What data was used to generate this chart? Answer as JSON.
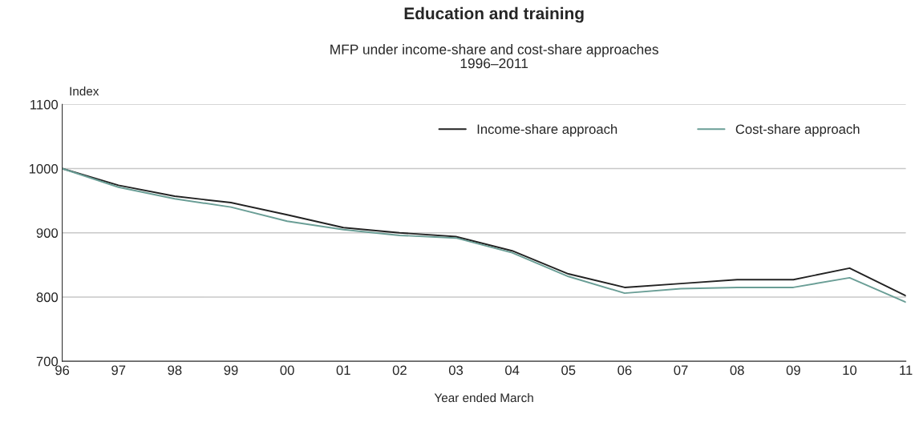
{
  "chart_data": {
    "type": "line",
    "title": "Education and training",
    "subtitle": "MFP under income-share and cost-share approaches\n1996–2011",
    "xlabel": "Year ended March",
    "ylabel": "Index",
    "categories": [
      "96",
      "97",
      "98",
      "99",
      "00",
      "01",
      "02",
      "03",
      "04",
      "05",
      "06",
      "07",
      "08",
      "09",
      "10",
      "11"
    ],
    "series": [
      {
        "name": "Income-share approach",
        "color": "#222222",
        "values": [
          1000,
          974,
          957,
          947,
          928,
          908,
          900,
          894,
          872,
          836,
          815,
          821,
          827,
          827,
          845,
          802
        ]
      },
      {
        "name": "Cost-share approach",
        "color": "#6a9e96",
        "values": [
          1000,
          971,
          953,
          940,
          918,
          905,
          896,
          892,
          869,
          832,
          806,
          813,
          815,
          815,
          830,
          792
        ]
      }
    ],
    "ylim": [
      700,
      1100
    ],
    "yticks": [
      700,
      800,
      900,
      1000,
      1100
    ],
    "grid": "y",
    "legend": "top right",
    "line_style": "solid",
    "marker": "none"
  }
}
